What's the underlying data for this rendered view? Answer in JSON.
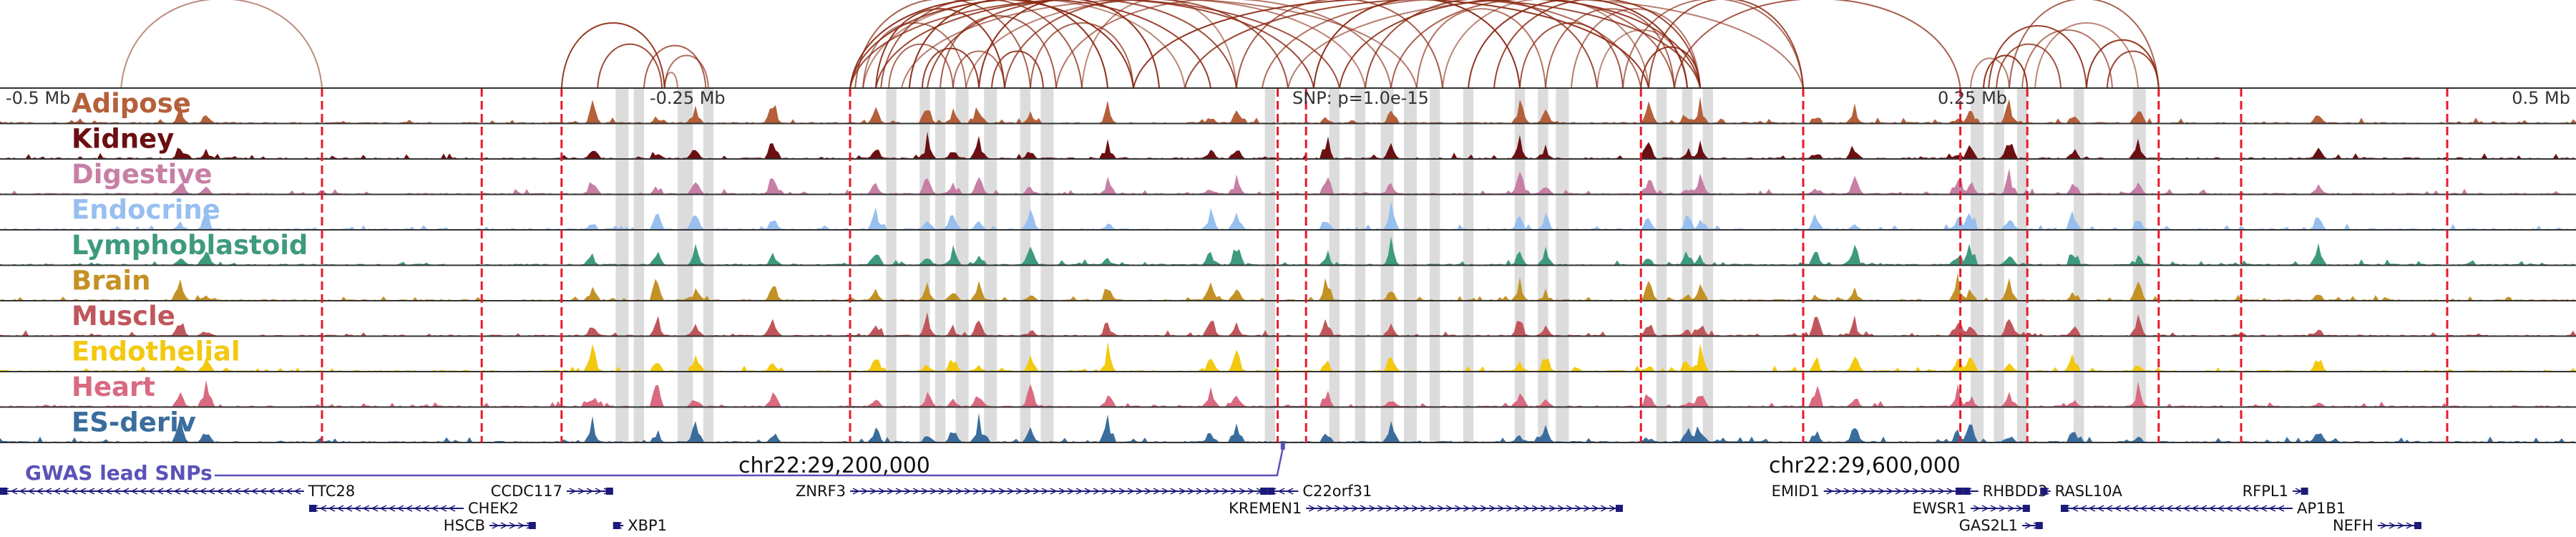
{
  "colors": {
    "background": "#ffffff",
    "arc": "#8b2a14",
    "marker_line": "#e8192c",
    "highlight": "#dcdcdc",
    "track_baseline": "#333333",
    "gwas": "#5b52b8",
    "gene": "#1c1a7a"
  },
  "axis": {
    "ticks": [
      {
        "pos": -0.5,
        "label": "-0.5 Mb",
        "anchor": "start"
      },
      {
        "pos": -0.25,
        "label": "-0.25 Mb",
        "anchor": "start"
      },
      {
        "pos": 0.25,
        "label": "0.25 Mb",
        "anchor": "start"
      },
      {
        "pos": 0.5,
        "label": "0.5 Mb",
        "anchor": "end"
      }
    ],
    "snp_label": "SNP: p=1.0e-15",
    "snp_pos": 0.0,
    "range_mb": [
      -0.5,
      0.5
    ]
  },
  "coordinates": [
    {
      "label": "chr22:29,200,000",
      "pos": -0.18
    },
    {
      "label": "chr22:29,600,000",
      "pos": 0.22
    }
  ],
  "tissues": [
    {
      "name": "Adipose",
      "color": "#b5603a",
      "seed": 3
    },
    {
      "name": "Kidney",
      "color": "#6b0f12",
      "seed": 7
    },
    {
      "name": "Digestive",
      "color": "#c77fa5",
      "seed": 11
    },
    {
      "name": "Endocrine",
      "color": "#97bff0",
      "seed": 13
    },
    {
      "name": "Lymphoblastoid",
      "color": "#3e9a7e",
      "seed": 17
    },
    {
      "name": "Brain",
      "color": "#c39225",
      "seed": 19
    },
    {
      "name": "Muscle",
      "color": "#c0565b",
      "seed": 23
    },
    {
      "name": "Endothelial",
      "color": "#f2c90f",
      "seed": 29
    },
    {
      "name": "Heart",
      "color": "#d96a80",
      "seed": 31
    },
    {
      "name": "ES-deriv",
      "color": "#3a6d9e",
      "seed": 37
    }
  ],
  "gwas": {
    "label": "GWAS lead SNPs",
    "snp_pos": -0.002
  },
  "marker_lines_mb": [
    -0.375,
    -0.313,
    -0.282,
    -0.17,
    -0.004,
    0.007,
    0.137,
    0.2,
    0.261,
    0.287,
    0.338,
    0.37,
    0.45
  ],
  "highlight_regions_mb": [
    [
      -0.261,
      -0.256
    ],
    [
      -0.254,
      -0.25
    ],
    [
      -0.237,
      -0.231
    ],
    [
      -0.227,
      -0.223
    ],
    [
      -0.156,
      -0.152
    ],
    [
      -0.143,
      -0.139
    ],
    [
      -0.137,
      -0.133
    ],
    [
      -0.129,
      -0.124
    ],
    [
      -0.118,
      -0.113
    ],
    [
      -0.104,
      -0.1
    ],
    [
      -0.096,
      -0.091
    ],
    [
      -0.009,
      -0.005
    ],
    [
      0.016,
      0.02
    ],
    [
      0.026,
      0.03
    ],
    [
      0.036,
      0.041
    ],
    [
      0.045,
      0.05
    ],
    [
      0.055,
      0.059
    ],
    [
      0.068,
      0.072
    ],
    [
      0.088,
      0.092
    ],
    [
      0.097,
      0.101
    ],
    [
      0.104,
      0.109
    ],
    [
      0.143,
      0.147
    ],
    [
      0.153,
      0.157
    ],
    [
      0.161,
      0.165
    ],
    [
      0.265,
      0.27
    ],
    [
      0.274,
      0.278
    ],
    [
      0.283,
      0.287
    ],
    [
      0.305,
      0.309
    ],
    [
      0.328,
      0.333
    ]
  ],
  "peaks_mb": [
    -0.43,
    -0.42,
    -0.27,
    -0.245,
    -0.23,
    -0.2,
    -0.16,
    -0.14,
    -0.13,
    -0.12,
    -0.1,
    -0.07,
    -0.03,
    -0.02,
    0.015,
    0.04,
    0.09,
    0.1,
    0.14,
    0.155,
    0.16,
    0.205,
    0.22,
    0.26,
    0.265,
    0.28,
    0.305,
    0.33,
    0.4
  ],
  "arcs_mb": [
    [
      -0.453,
      -0.375
    ],
    [
      -0.282,
      -0.242
    ],
    [
      -0.268,
      -0.243
    ],
    [
      -0.25,
      -0.226
    ],
    [
      -0.242,
      -0.225
    ],
    [
      -0.242,
      -0.237
    ],
    [
      -0.17,
      -0.06
    ],
    [
      -0.17,
      -0.03
    ],
    [
      -0.17,
      0.02
    ],
    [
      -0.168,
      -0.1
    ],
    [
      -0.165,
      -0.125
    ],
    [
      -0.165,
      -0.04
    ],
    [
      -0.16,
      -0.11
    ],
    [
      -0.16,
      0.01
    ],
    [
      -0.158,
      -0.08
    ],
    [
      -0.155,
      -0.13
    ],
    [
      -0.15,
      0.05
    ],
    [
      -0.147,
      -0.07
    ],
    [
      -0.142,
      -0.12
    ],
    [
      -0.14,
      -0.02
    ],
    [
      -0.135,
      -0.09
    ],
    [
      -0.13,
      -0.11
    ],
    [
      -0.125,
      0.03
    ],
    [
      -0.12,
      -0.05
    ],
    [
      -0.115,
      -0.095
    ],
    [
      -0.11,
      0.0
    ],
    [
      -0.1,
      -0.06
    ],
    [
      -0.09,
      0.04
    ],
    [
      -0.08,
      -0.02
    ],
    [
      -0.06,
      0.14
    ],
    [
      -0.04,
      0.16
    ],
    [
      -0.02,
      0.06
    ],
    [
      -0.01,
      0.137
    ],
    [
      0.0,
      0.2
    ],
    [
      0.01,
      0.09
    ],
    [
      0.02,
      0.16
    ],
    [
      0.03,
      0.12
    ],
    [
      0.04,
      0.15
    ],
    [
      0.05,
      0.1
    ],
    [
      0.06,
      0.14
    ],
    [
      0.07,
      0.155
    ],
    [
      0.08,
      0.16
    ],
    [
      0.09,
      0.13
    ],
    [
      0.1,
      0.15
    ],
    [
      0.11,
      0.16
    ],
    [
      0.12,
      0.155
    ],
    [
      0.137,
      0.16
    ],
    [
      0.14,
      0.2
    ],
    [
      0.15,
      0.261
    ],
    [
      0.13,
      0.2
    ],
    [
      0.265,
      0.28
    ],
    [
      0.27,
      0.287
    ],
    [
      0.272,
      0.31
    ],
    [
      0.275,
      0.3
    ],
    [
      0.28,
      0.338
    ],
    [
      0.285,
      0.32
    ],
    [
      0.29,
      0.33
    ],
    [
      0.31,
      0.338
    ],
    [
      0.318,
      0.338
    ]
  ],
  "genes": [
    {
      "name": "TTC28",
      "start": -0.5,
      "end": -0.382,
      "row": 0,
      "strand": "-",
      "label_side": "right"
    },
    {
      "name": "CCDC117",
      "start": -0.28,
      "end": -0.262,
      "row": 0,
      "strand": "+",
      "label_side": "left"
    },
    {
      "name": "CHEK2",
      "start": -0.38,
      "end": -0.32,
      "row": 1,
      "strand": "-",
      "label_side": "right"
    },
    {
      "name": "HSCB",
      "start": -0.31,
      "end": -0.292,
      "row": 2,
      "strand": "+",
      "label_side": "left"
    },
    {
      "name": "XBP1",
      "start": -0.262,
      "end": -0.258,
      "row": 2,
      "strand": "-",
      "label_side": "right"
    },
    {
      "name": "ZNRF3",
      "start": -0.17,
      "end": -0.008,
      "row": 0,
      "strand": "+",
      "label_side": "left"
    },
    {
      "name": "C22orf31",
      "start": -0.008,
      "end": 0.004,
      "row": 0,
      "strand": "-",
      "label_side": "right"
    },
    {
      "name": "KREMEN1",
      "start": 0.007,
      "end": 0.13,
      "row": 1,
      "strand": "+",
      "label_side": "left"
    },
    {
      "name": "EMID1",
      "start": 0.208,
      "end": 0.262,
      "row": 0,
      "strand": "+",
      "label_side": "left"
    },
    {
      "name": "RHBDD3",
      "start": 0.262,
      "end": 0.268,
      "row": 0,
      "strand": "-",
      "label_side": "right"
    },
    {
      "name": "EWSR1",
      "start": 0.265,
      "end": 0.288,
      "row": 1,
      "strand": "+",
      "label_side": "left"
    },
    {
      "name": "GAS2L1",
      "start": 0.285,
      "end": 0.293,
      "row": 2,
      "strand": "+",
      "label_side": "left"
    },
    {
      "name": "RASL10A",
      "start": 0.292,
      "end": 0.296,
      "row": 0,
      "strand": "-",
      "label_side": "right"
    },
    {
      "name": "AP1B1",
      "start": 0.3,
      "end": 0.39,
      "row": 1,
      "strand": "-",
      "label_side": "right"
    },
    {
      "name": "RFPL1",
      "start": 0.39,
      "end": 0.396,
      "row": 0,
      "strand": "+",
      "label_side": "left"
    },
    {
      "name": "NEFH",
      "start": 0.423,
      "end": 0.44,
      "row": 2,
      "strand": "+",
      "label_side": "left"
    }
  ]
}
